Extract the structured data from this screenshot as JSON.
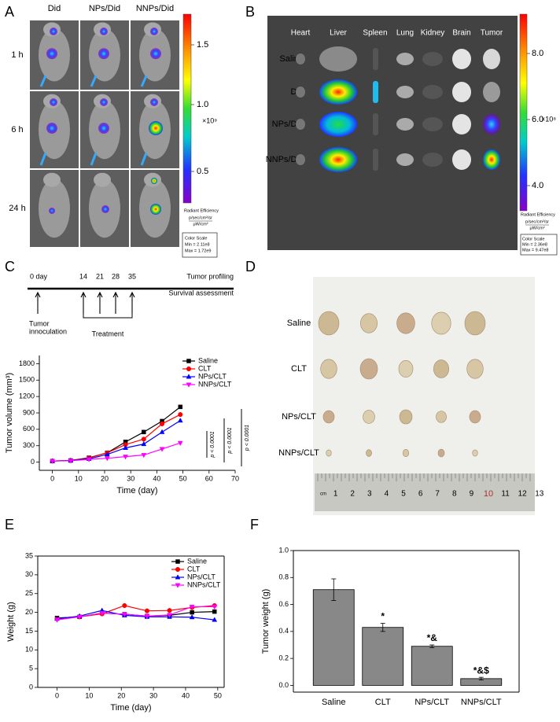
{
  "panel_a": {
    "label": "A",
    "columns": [
      "Did",
      "NPs/Did",
      "NNPs/Did"
    ],
    "rows": [
      "1 h",
      "6 h",
      "24 h"
    ],
    "colorbar": {
      "ticks": [
        "1.5",
        "1.0",
        "0.5"
      ],
      "exponent": "×10⁹",
      "title": "Radiant Efficiency",
      "units_top": "p/sec/cm²/sr",
      "units_bottom": "μW/cm²",
      "scale_title": "Color Scale",
      "min": "Min = 2.11e8",
      "max": "Max = 1.72e9"
    }
  },
  "panel_b": {
    "label": "B",
    "organs": [
      "Heart",
      "Liver",
      "Spleen",
      "Lung",
      "Kidney",
      "Brain",
      "Tumor"
    ],
    "rows": [
      "Saline",
      "Did",
      "NPs/Did",
      "NNPs/Did"
    ],
    "colorbar": {
      "ticks": [
        "8.0",
        "6.0",
        "4.0"
      ],
      "exponent": "×10⁸",
      "title": "Radiant Efficiency",
      "units_top": "p/sec/cm²/sr",
      "units_bottom": "μW/cm²",
      "scale_title": "Color Scale",
      "min": "Min = 2.36e8",
      "max": "Max = 9.47e8"
    }
  },
  "panel_c_timeline": {
    "label": "C",
    "start": "0 day",
    "days": [
      "14",
      "21",
      "28",
      "35"
    ],
    "profiling": "Tumor profiling",
    "survival": "Survival assessment",
    "innoculation": [
      "Tumor",
      "innoculation"
    ],
    "treatment": "Treatment"
  },
  "panel_d": {
    "label": "D",
    "rows": [
      "Saline",
      "CLT",
      "NPs/CLT",
      "NNPs/CLT"
    ],
    "ruler": [
      "cm",
      "1",
      "2",
      "3",
      "4",
      "5",
      "6",
      "7",
      "8",
      "9",
      "10",
      "11",
      "12",
      "13"
    ]
  },
  "panel_e_label": "E",
  "panel_f_label": "F",
  "chart_data": [
    {
      "type": "line",
      "x_label": "Time (day)",
      "y_label": "Tumor volume (mm³)",
      "x": [
        0,
        7,
        14,
        21,
        28,
        35,
        42,
        49
      ],
      "xlim": [
        -5,
        70
      ],
      "xticks": [
        0,
        10,
        20,
        30,
        40,
        50,
        60,
        70
      ],
      "ylim": [
        -150,
        1950
      ],
      "yticks": [
        0,
        300,
        600,
        900,
        1200,
        1500,
        1800
      ],
      "frame": false,
      "legend": "upper right",
      "series": [
        {
          "name": "Saline",
          "color": "#000000",
          "marker": "square",
          "values": [
            20,
            30,
            80,
            170,
            370,
            550,
            750,
            1010
          ]
        },
        {
          "name": "CLT",
          "color": "#ff0000",
          "marker": "circle",
          "values": [
            20,
            30,
            75,
            170,
            320,
            420,
            700,
            870
          ]
        },
        {
          "name": "NPs/CLT",
          "color": "#0000ff",
          "marker": "triangle-up",
          "values": [
            20,
            30,
            60,
            140,
            260,
            330,
            550,
            760
          ]
        },
        {
          "name": "NNPs/CLT",
          "color": "#ff00ff",
          "marker": "triangle-down",
          "values": [
            20,
            25,
            50,
            70,
            100,
            130,
            240,
            350
          ]
        }
      ],
      "annotations": [
        "p < 0.0001",
        "p < 0.0001",
        "p < 0.0001"
      ]
    },
    {
      "type": "line",
      "x_label": "Time (day)",
      "y_label": "Weight (g)",
      "x": [
        0,
        7,
        14,
        21,
        28,
        35,
        42,
        49
      ],
      "xlim": [
        -6,
        52
      ],
      "xticks": [
        0,
        10,
        20,
        30,
        40,
        50
      ],
      "ylim": [
        0,
        35
      ],
      "yticks": [
        0,
        5,
        10,
        15,
        20,
        25,
        30,
        35
      ],
      "frame": true,
      "legend": "upper right",
      "series": [
        {
          "name": "Saline",
          "color": "#000000",
          "marker": "square",
          "values": [
            18.5,
            18.8,
            19.8,
            19.5,
            19.0,
            19.2,
            20.0,
            20.2
          ]
        },
        {
          "name": "CLT",
          "color": "#ff0000",
          "marker": "circle",
          "values": [
            18.3,
            18.8,
            19.6,
            21.8,
            20.4,
            20.5,
            21.3,
            21.8
          ]
        },
        {
          "name": "NPs/CLT",
          "color": "#0000ff",
          "marker": "triangle-up",
          "values": [
            18.3,
            19.0,
            20.5,
            19.2,
            18.8,
            18.8,
            18.7,
            18.0
          ]
        },
        {
          "name": "NNPs/CLT",
          "color": "#ff00ff",
          "marker": "triangle-down",
          "values": [
            18.0,
            18.8,
            19.8,
            19.5,
            19.0,
            19.3,
            21.5,
            21.5
          ]
        }
      ]
    },
    {
      "type": "bar",
      "y_label": "Tumor weight (g)",
      "categories": [
        "Saline",
        "CLT",
        "NPs/CLT",
        "NNPs/CLT"
      ],
      "values": [
        0.71,
        0.43,
        0.29,
        0.05
      ],
      "errors": [
        0.08,
        0.03,
        0.01,
        0.01
      ],
      "significance": [
        null,
        "*",
        "*&",
        "*&$"
      ],
      "color": "#888888",
      "ylim": [
        -0.05,
        1.0
      ],
      "yticks": [
        {
          "value": 0,
          "label": "0.0"
        },
        0.2,
        0.4,
        0.6,
        0.8,
        {
          "value": 1,
          "label": "1.0"
        }
      ],
      "frame": true
    }
  ]
}
